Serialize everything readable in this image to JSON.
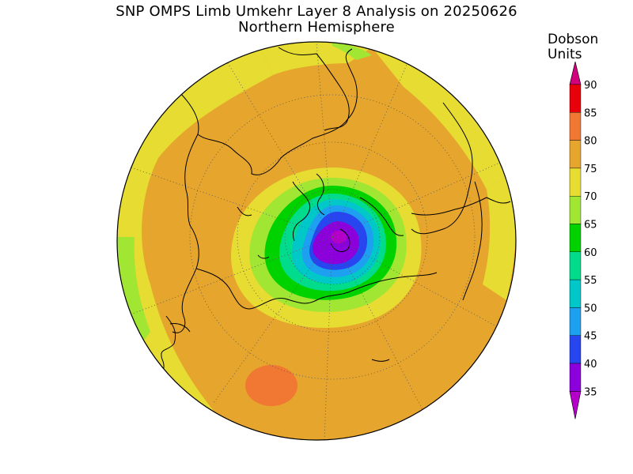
{
  "title": {
    "line1": "SNP OMPS Limb Umkehr Layer 8 Analysis on 20250626",
    "line2": "Northern Hemisphere"
  },
  "colorbar": {
    "unit_line1": "Dobson",
    "unit_line2": "Units",
    "levels": [
      {
        "value": "90",
        "color": "#ff00ff"
      },
      {
        "value": "85",
        "color": "#e8000a"
      },
      {
        "value": "80",
        "color": "#f07832"
      },
      {
        "value": "75",
        "color": "#e6a52d"
      },
      {
        "value": "70",
        "color": "#e6dc32"
      },
      {
        "value": "65",
        "color": "#a0e632"
      },
      {
        "value": "60",
        "color": "#00d200"
      },
      {
        "value": "55",
        "color": "#00dc8c"
      },
      {
        "value": "50",
        "color": "#00c8c8"
      },
      {
        "value": "45",
        "color": "#1ea0f0"
      },
      {
        "value": "40",
        "color": "#2846f0"
      },
      {
        "value": "35",
        "color": "#8c00dc"
      }
    ],
    "top_arrow_color": "#d2007d",
    "bottom_arrow_color": "#b400c8"
  },
  "map": {
    "projection": "north-polar-stereographic",
    "background_field_color": "#e6a52d",
    "outer_ring_color": "#e6dc32"
  }
}
